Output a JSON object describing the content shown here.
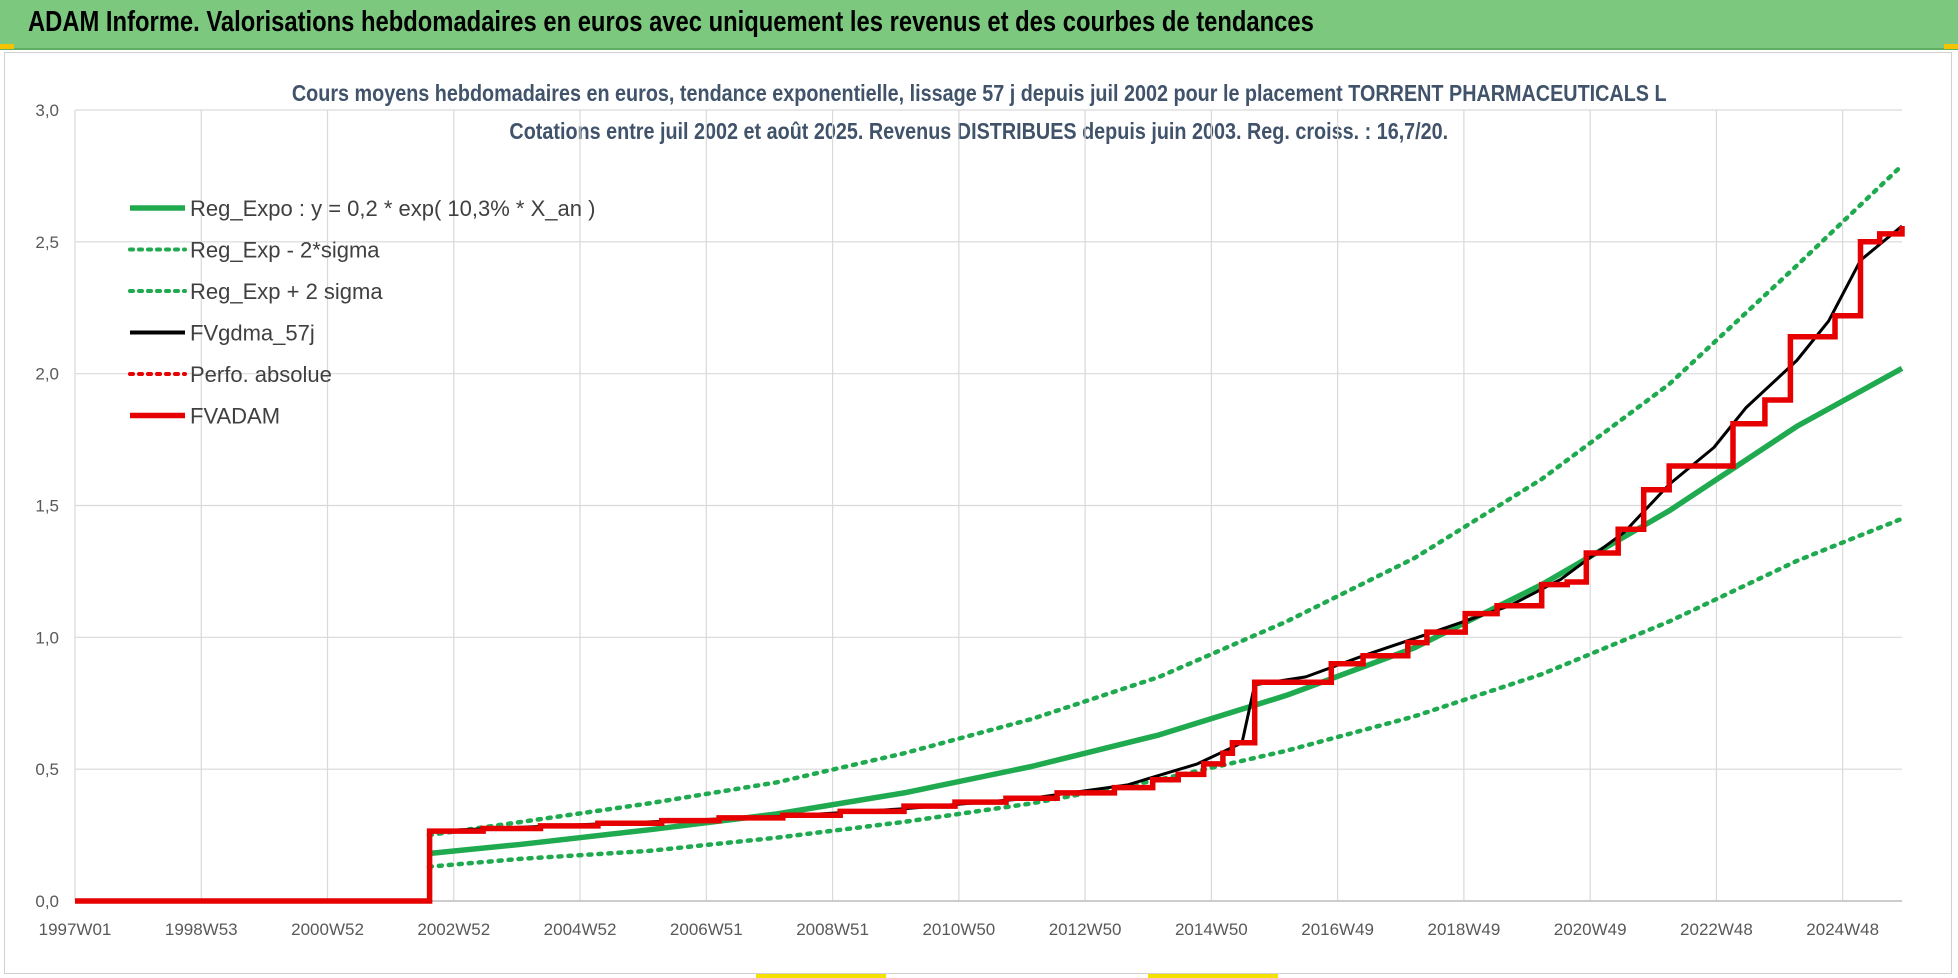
{
  "banner": {
    "title": "ADAM Informe. Valorisations hebdomadaires en euros avec uniquement les revenus et des courbes de tendances"
  },
  "colors": {
    "banner_bg": "#7dc87f",
    "title_text": "#40536a",
    "green": "#1faa4f",
    "black": "#000000",
    "red": "#e60000",
    "grid": "#d9d9d9"
  },
  "chart_data": {
    "type": "line",
    "title": "Cours moyens hebdomadaires en euros, tendance exponentielle, lissage 57 j depuis juil 2002 pour le placement TORRENT PHARMACEUTICALS L",
    "subtitle": "Cotations entre juil 2002 et août 2025. Revenus DISTRIBUES depuis juin 2003. Reg. croiss. : 16,7/20.",
    "xlabel": "",
    "ylabel": "",
    "ylim": [
      0,
      3.0
    ],
    "xlim": [
      1997.0,
      2025.65
    ],
    "y_ticks": [
      "0,0",
      "0,5",
      "1,0",
      "1,5",
      "2,0",
      "2,5",
      "3,0"
    ],
    "x_ticks": [
      "1997W01",
      "1998W53",
      "2000W52",
      "2002W52",
      "2004W52",
      "2006W51",
      "2008W51",
      "2010W50",
      "2012W50",
      "2014W50",
      "2016W49",
      "2018W49",
      "2020W49",
      "2022W48",
      "2024W48"
    ],
    "grid": true,
    "legend_position": "top-left",
    "legend": [
      {
        "label": "Reg_Expo : y = 0,2 * exp( 10,3% *  X_an )",
        "style": "solid-green"
      },
      {
        "label": "Reg_Exp - 2*sigma",
        "style": "dotted-green"
      },
      {
        "label": "Reg_Exp + 2 sigma",
        "style": "dotted-green"
      },
      {
        "label": "FVgdma_57j",
        "style": "solid-black"
      },
      {
        "label": "Perfo. absolue",
        "style": "dotted-red"
      },
      {
        "label": "FVADAM",
        "style": "solid-red"
      }
    ],
    "series": [
      {
        "name": "Reg_Expo : y = 0,2 * exp( 10,3% *  X_an )",
        "x": [
          2002.55,
          2004,
          2006,
          2008,
          2010,
          2012,
          2014,
          2016,
          2018,
          2020,
          2022,
          2024,
          2025.65
        ],
        "y": [
          0.18,
          0.215,
          0.27,
          0.33,
          0.41,
          0.51,
          0.63,
          0.78,
          0.96,
          1.2,
          1.48,
          1.8,
          2.02
        ]
      },
      {
        "name": "Reg_Exp - 2*sigma",
        "x": [
          2002.55,
          2004,
          2006,
          2008,
          2010,
          2012,
          2014,
          2016,
          2018,
          2020,
          2022,
          2024,
          2025.65
        ],
        "y": [
          0.13,
          0.16,
          0.19,
          0.24,
          0.3,
          0.37,
          0.46,
          0.57,
          0.7,
          0.86,
          1.06,
          1.29,
          1.45
        ]
      },
      {
        "name": "Reg_Exp + 2 sigma",
        "x": [
          2002.55,
          2004,
          2006,
          2008,
          2010,
          2012,
          2014,
          2016,
          2018,
          2020,
          2022,
          2024,
          2025.65
        ],
        "y": [
          0.25,
          0.3,
          0.37,
          0.45,
          0.56,
          0.69,
          0.85,
          1.06,
          1.3,
          1.6,
          1.96,
          2.41,
          2.79
        ]
      },
      {
        "name": "FVgdma_57j",
        "x": [
          1997.0,
          2002.55,
          2002.56,
          2004,
          2006,
          2008,
          2010,
          2012,
          2013.5,
          2014.6,
          2015.3,
          2015.5,
          2016.3,
          2017.2,
          2018.3,
          2019.5,
          2020.3,
          2021.3,
          2022.0,
          2022.7,
          2023.2,
          2024.0,
          2024.5,
          2025.0,
          2025.65
        ],
        "y": [
          0.0,
          0.0,
          0.265,
          0.28,
          0.3,
          0.32,
          0.35,
          0.39,
          0.44,
          0.52,
          0.6,
          0.82,
          0.85,
          0.93,
          1.02,
          1.12,
          1.22,
          1.4,
          1.58,
          1.72,
          1.87,
          2.05,
          2.2,
          2.43,
          2.56
        ]
      },
      {
        "name": "FVADAM",
        "x": [
          1997.0,
          2002.55,
          2002.56,
          2003.4,
          2004.3,
          2005.2,
          2006.2,
          2007.1,
          2008.1,
          2009.0,
          2010.0,
          2010.8,
          2011.6,
          2012.4,
          2013.3,
          2013.9,
          2014.3,
          2014.7,
          2015.0,
          2015.15,
          2015.5,
          2016.2,
          2016.7,
          2017.2,
          2017.9,
          2018.2,
          2018.8,
          2019.3,
          2020.0,
          2020.4,
          2020.7,
          2021.2,
          2021.6,
          2022.0,
          2022.5,
          2023.0,
          2023.5,
          2023.9,
          2024.6,
          2025.0,
          2025.3,
          2025.65
        ],
        "y": [
          0.0,
          0.0,
          0.265,
          0.275,
          0.285,
          0.295,
          0.305,
          0.315,
          0.325,
          0.34,
          0.36,
          0.375,
          0.39,
          0.41,
          0.43,
          0.46,
          0.48,
          0.52,
          0.56,
          0.6,
          0.83,
          0.83,
          0.9,
          0.93,
          0.98,
          1.02,
          1.09,
          1.12,
          1.2,
          1.21,
          1.32,
          1.41,
          1.56,
          1.65,
          1.65,
          1.81,
          1.9,
          2.14,
          2.22,
          2.5,
          2.53,
          2.56
        ]
      }
    ]
  }
}
